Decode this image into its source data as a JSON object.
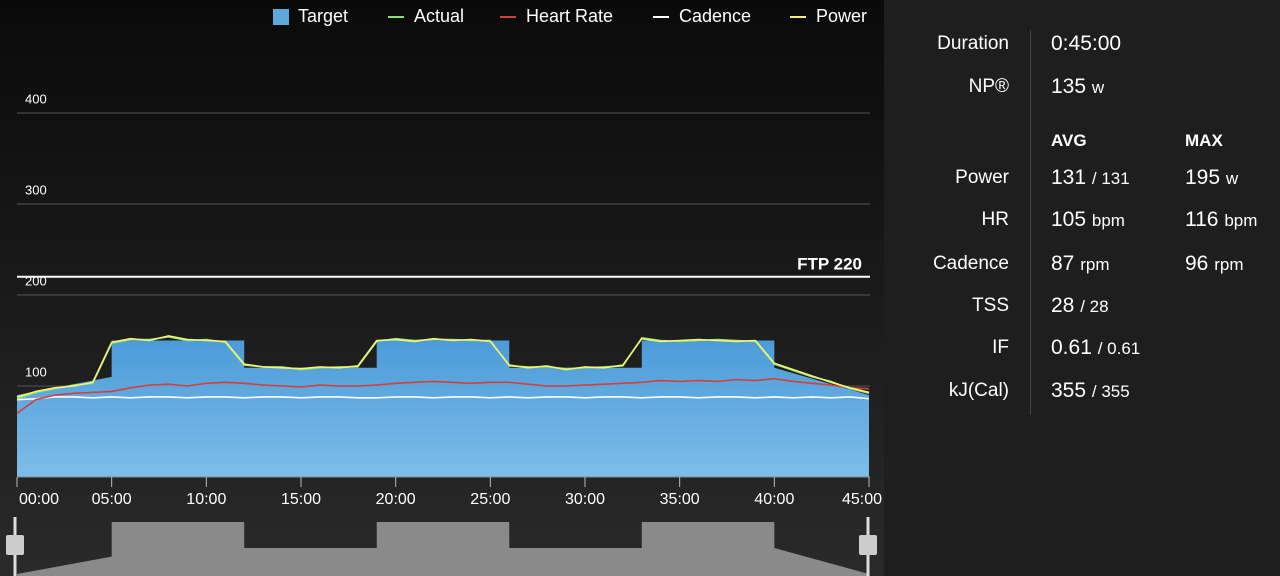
{
  "chart_data": {
    "type": "line",
    "x": [
      0,
      1,
      2,
      3,
      4,
      5,
      6,
      7,
      8,
      9,
      10,
      11,
      12,
      13,
      14,
      15,
      16,
      17,
      18,
      19,
      20,
      21,
      22,
      23,
      24,
      25,
      26,
      27,
      28,
      29,
      30,
      31,
      32,
      33,
      34,
      35,
      36,
      37,
      38,
      39,
      40,
      41,
      42,
      43,
      44,
      45
    ],
    "series": [
      {
        "name": "Target",
        "color": "#5fa8de",
        "style": "area",
        "x": [
          0,
          5,
          5,
          12,
          12,
          19,
          19,
          26,
          26,
          33,
          33,
          40,
          40,
          45
        ],
        "values": [
          90,
          110,
          150,
          150,
          120,
          120,
          150,
          150,
          120,
          120,
          150,
          150,
          120,
          90
        ]
      },
      {
        "name": "Actual",
        "color": "#8be06a",
        "style": "line",
        "values": [
          86,
          93,
          97,
          101,
          103,
          147,
          151,
          151,
          154,
          150,
          151,
          148,
          123,
          121,
          121,
          118,
          120,
          121,
          121,
          149,
          152,
          150,
          151,
          151,
          150,
          150,
          122,
          121,
          121,
          119,
          120,
          121,
          122,
          153,
          150,
          149,
          150,
          151,
          150,
          149,
          124,
          117,
          110,
          105,
          97,
          92
        ]
      },
      {
        "name": "Heart Rate",
        "color": "#d2403a",
        "style": "line",
        "values": [
          70,
          85,
          90,
          92,
          93,
          94,
          98,
          101,
          102,
          100,
          103,
          104,
          103,
          101,
          100,
          99,
          101,
          100,
          100,
          101,
          103,
          104,
          105,
          104,
          103,
          104,
          104,
          102,
          100,
          100,
          101,
          102,
          103,
          104,
          106,
          105,
          106,
          105,
          107,
          106,
          108,
          105,
          103,
          101,
          98,
          97
        ]
      },
      {
        "name": "Cadence",
        "color": "#ffffff",
        "style": "line",
        "values": [
          85,
          86,
          88,
          88,
          87,
          88,
          87,
          88,
          88,
          87,
          88,
          88,
          87,
          88,
          88,
          87,
          88,
          88,
          87,
          87,
          88,
          88,
          87,
          88,
          88,
          87,
          88,
          87,
          88,
          88,
          87,
          88,
          88,
          87,
          88,
          88,
          87,
          88,
          88,
          87,
          88,
          87,
          88,
          87,
          88,
          86
        ]
      },
      {
        "name": "Power",
        "color": "#f1f27a",
        "style": "line",
        "values": [
          88,
          94,
          98,
          100,
          104,
          148,
          152,
          150,
          155,
          151,
          150,
          149,
          124,
          121,
          120,
          119,
          121,
          120,
          122,
          150,
          151,
          149,
          152,
          150,
          151,
          149,
          123,
          120,
          122,
          118,
          121,
          120,
          123,
          152,
          149,
          150,
          151,
          150,
          149,
          150,
          125,
          118,
          111,
          104,
          98,
          93
        ]
      }
    ],
    "xlim": [
      0,
      45
    ],
    "xticks": [
      {
        "value": 0,
        "label": "00:00"
      },
      {
        "value": 5,
        "label": "05:00"
      },
      {
        "value": 10,
        "label": "10:00"
      },
      {
        "value": 15,
        "label": "15:00"
      },
      {
        "value": 20,
        "label": "20:00"
      },
      {
        "value": 25,
        "label": "25:00"
      },
      {
        "value": 30,
        "label": "30:00"
      },
      {
        "value": 35,
        "label": "35:00"
      },
      {
        "value": 40,
        "label": "40:00"
      },
      {
        "value": 45,
        "label": "45:00"
      }
    ],
    "ylim": [
      0,
      500
    ],
    "yticks": [
      100,
      200,
      300,
      400
    ],
    "grid": true,
    "legend": "top-right",
    "ftp_line": {
      "value": 220,
      "label": "FTP 220"
    }
  },
  "stats": {
    "duration": {
      "label": "Duration",
      "value": "0:45:00"
    },
    "np": {
      "label": "NP®",
      "value": "135",
      "unit": "w"
    },
    "headers": [
      "AVG",
      "MAX"
    ],
    "rows": [
      {
        "label": "Power",
        "avg": "131",
        "avg_unit": "/ 131",
        "max": "195",
        "max_unit": "w"
      },
      {
        "label": "HR",
        "avg": "105",
        "avg_unit": "bpm",
        "max": "116",
        "max_unit": "bpm"
      },
      {
        "label": "Cadence",
        "avg": "87",
        "avg_unit": "rpm",
        "max": "96",
        "max_unit": "rpm"
      },
      {
        "label": "TSS",
        "avg": "28",
        "avg_unit": "/ 28"
      },
      {
        "label": "IF",
        "avg": "0.61",
        "avg_unit": "/ 0.61"
      },
      {
        "label": "kJ(Cal)",
        "avg": "355",
        "avg_unit": "/ 355"
      }
    ]
  }
}
